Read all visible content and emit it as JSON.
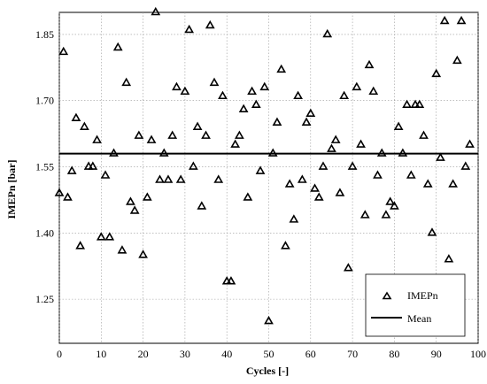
{
  "chart_data": {
    "type": "scatter",
    "xlabel": "Cycles [-]",
    "ylabel": "IMEPn [bar]",
    "xlim": [
      0,
      100
    ],
    "ylim": [
      1.15,
      1.9
    ],
    "x_ticks": [
      "0",
      "10",
      "20",
      "30",
      "40",
      "50",
      "60",
      "70",
      "80",
      "90",
      "100"
    ],
    "y_ticks": [
      "1.25",
      "1.40",
      "1.55",
      "1.70",
      "1.85"
    ],
    "grid": true,
    "legend_position": "bottom-right",
    "series": [
      {
        "name": "IMEPn",
        "marker": "triangle-open",
        "points": [
          [
            0,
            1.49
          ],
          [
            1,
            1.81
          ],
          [
            2,
            1.48
          ],
          [
            3,
            1.54
          ],
          [
            4,
            1.66
          ],
          [
            5,
            1.37
          ],
          [
            6,
            1.64
          ],
          [
            7,
            1.55
          ],
          [
            8,
            1.55
          ],
          [
            9,
            1.61
          ],
          [
            10,
            1.39
          ],
          [
            11,
            1.53
          ],
          [
            12,
            1.39
          ],
          [
            13,
            1.58
          ],
          [
            14,
            1.82
          ],
          [
            15,
            1.36
          ],
          [
            16,
            1.74
          ],
          [
            17,
            1.47
          ],
          [
            18,
            1.45
          ],
          [
            19,
            1.62
          ],
          [
            20,
            1.35
          ],
          [
            21,
            1.48
          ],
          [
            22,
            1.61
          ],
          [
            23,
            1.9
          ],
          [
            24,
            1.52
          ],
          [
            25,
            1.58
          ],
          [
            26,
            1.52
          ],
          [
            27,
            1.62
          ],
          [
            28,
            1.73
          ],
          [
            29,
            1.52
          ],
          [
            30,
            1.72
          ],
          [
            31,
            1.86
          ],
          [
            32,
            1.55
          ],
          [
            33,
            1.64
          ],
          [
            34,
            1.46
          ],
          [
            35,
            1.62
          ],
          [
            36,
            1.87
          ],
          [
            37,
            1.74
          ],
          [
            38,
            1.52
          ],
          [
            39,
            1.71
          ],
          [
            40,
            1.29
          ],
          [
            41,
            1.29
          ],
          [
            42,
            1.6
          ],
          [
            43,
            1.62
          ],
          [
            44,
            1.68
          ],
          [
            45,
            1.48
          ],
          [
            46,
            1.72
          ],
          [
            47,
            1.69
          ],
          [
            48,
            1.54
          ],
          [
            49,
            1.73
          ],
          [
            50,
            1.2
          ],
          [
            51,
            1.58
          ],
          [
            52,
            1.65
          ],
          [
            53,
            1.77
          ],
          [
            54,
            1.37
          ],
          [
            55,
            1.51
          ],
          [
            56,
            1.43
          ],
          [
            57,
            1.71
          ],
          [
            58,
            1.52
          ],
          [
            59,
            1.65
          ],
          [
            60,
            1.67
          ],
          [
            61,
            1.5
          ],
          [
            62,
            1.48
          ],
          [
            63,
            1.55
          ],
          [
            64,
            1.85
          ],
          [
            65,
            1.59
          ],
          [
            66,
            1.61
          ],
          [
            67,
            1.49
          ],
          [
            68,
            1.71
          ],
          [
            69,
            1.32
          ],
          [
            70,
            1.55
          ],
          [
            71,
            1.73
          ],
          [
            72,
            1.6
          ],
          [
            73,
            1.44
          ],
          [
            74,
            1.78
          ],
          [
            75,
            1.72
          ],
          [
            76,
            1.53
          ],
          [
            77,
            1.58
          ],
          [
            78,
            1.44
          ],
          [
            79,
            1.47
          ],
          [
            80,
            1.46
          ],
          [
            81,
            1.64
          ],
          [
            82,
            1.58
          ],
          [
            83,
            1.69
          ],
          [
            84,
            1.53
          ],
          [
            85,
            1.69
          ],
          [
            86,
            1.69
          ],
          [
            87,
            1.62
          ],
          [
            88,
            1.51
          ],
          [
            89,
            1.4
          ],
          [
            90,
            1.76
          ],
          [
            91,
            1.57
          ],
          [
            92,
            1.88
          ],
          [
            93,
            1.34
          ],
          [
            94,
            1.51
          ],
          [
            95,
            1.79
          ],
          [
            96,
            1.88
          ],
          [
            97,
            1.55
          ],
          [
            98,
            1.6
          ]
        ]
      },
      {
        "name": "Mean",
        "marker": "line",
        "value": 1.58
      }
    ]
  },
  "legend": {
    "items": [
      "IMEPn",
      "Mean"
    ]
  }
}
